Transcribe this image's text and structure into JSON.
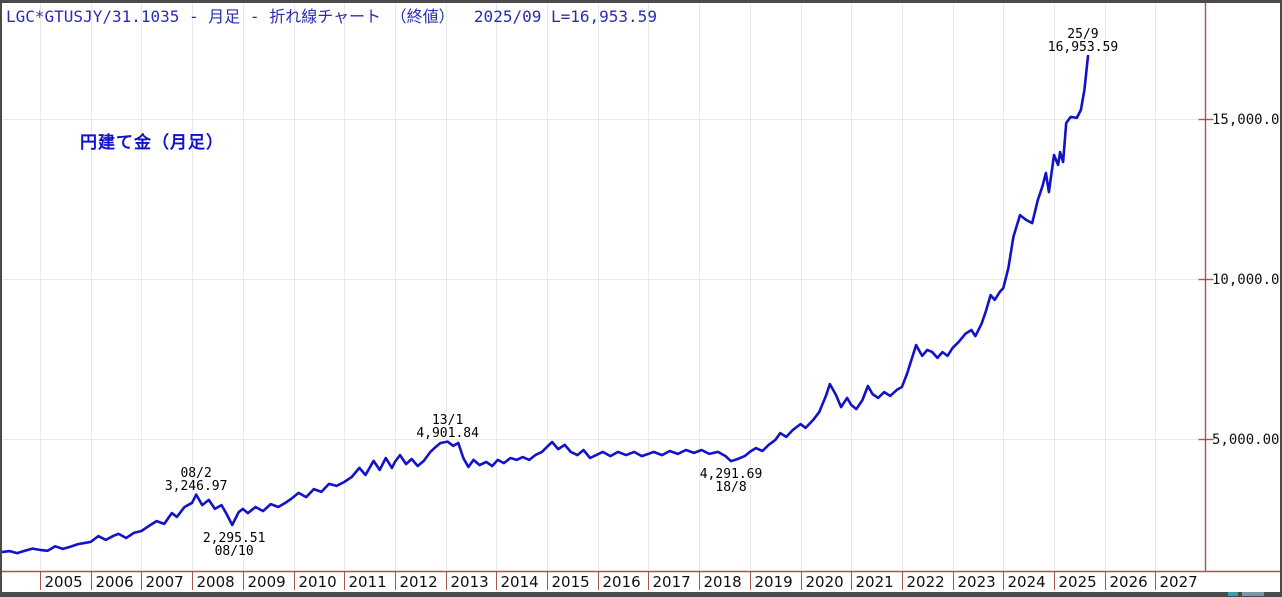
{
  "header": {
    "text": "LGC*GTUSJY/31.1035 - 月足 - 折れ線チャート （終値）  2025/09 L=16,953.59"
  },
  "chart_title": "円建て金（月足）",
  "colors": {
    "line": "#1212c8",
    "axis_red": "#a65454",
    "grid": "#e9e9e9",
    "header_text": "#2b2bb4",
    "title_text": "#1111cc",
    "label_text": "#101010",
    "frame": "#4a4a4a",
    "corner_accent_1": "#35a0a8",
    "corner_accent_2": "#8093a8"
  },
  "y_axis": {
    "tick_labels": [
      "15,000.00",
      "10,000.00",
      "5,000.00"
    ],
    "tick_values": [
      15000,
      10000,
      5000
    ]
  },
  "x_axis": {
    "year_labels": [
      "2005",
      "2006",
      "2007",
      "2008",
      "2009",
      "2010",
      "2011",
      "2012",
      "2013",
      "2014",
      "2015",
      "2016",
      "2017",
      "2018",
      "2019",
      "2020",
      "2021",
      "2022",
      "2023",
      "2024",
      "2025",
      "2026",
      "2027"
    ]
  },
  "annotations": [
    {
      "lines": [
        "25/9",
        "16,953.59"
      ],
      "year": 2025.67,
      "value": 16953.59,
      "position": "above",
      "dx": -5
    },
    {
      "lines": [
        "08/2",
        "3,246.97"
      ],
      "year": 2008.08,
      "value": 3246.97,
      "position": "above",
      "dx": 0
    },
    {
      "lines": [
        "2,295.51",
        "08/10"
      ],
      "year": 2008.79,
      "value": 2295.51,
      "position": "below",
      "dx": 2
    },
    {
      "lines": [
        "13/1",
        "4,901.84"
      ],
      "year": 2013.04,
      "value": 4901.84,
      "position": "above",
      "dx": 0
    },
    {
      "lines": [
        "4,291.69",
        "18/8"
      ],
      "year": 2018.63,
      "value": 4291.69,
      "position": "below",
      "dx": 0
    }
  ],
  "chart_data": {
    "type": "line",
    "title": "円建て金（月足）",
    "legend": false,
    "grid": true,
    "xlim": [
      2004.25,
      2028.0
    ],
    "ylim": [
      850,
      18600
    ],
    "y_ticks": [
      5000,
      10000,
      15000
    ],
    "latest": {
      "date": "2025/09",
      "close": 16953.59
    },
    "key_points": [
      {
        "date": "08/2",
        "value": 3246.97
      },
      {
        "date": "08/10",
        "value": 2295.51
      },
      {
        "date": "13/1",
        "value": 4901.84
      },
      {
        "date": "18/8",
        "value": 4291.69
      },
      {
        "date": "25/9",
        "value": 16953.59
      }
    ],
    "series": [
      {
        "name": "円建て金（月足・終値）",
        "points": [
          [
            2004.25,
            1450
          ],
          [
            2004.4,
            1480
          ],
          [
            2004.55,
            1420
          ],
          [
            2004.7,
            1490
          ],
          [
            2004.85,
            1560
          ],
          [
            2005.0,
            1520
          ],
          [
            2005.15,
            1490
          ],
          [
            2005.3,
            1630
          ],
          [
            2005.45,
            1550
          ],
          [
            2005.6,
            1620
          ],
          [
            2005.75,
            1700
          ],
          [
            2005.9,
            1740
          ],
          [
            2006.0,
            1770
          ],
          [
            2006.15,
            1950
          ],
          [
            2006.3,
            1830
          ],
          [
            2006.45,
            1960
          ],
          [
            2006.55,
            2020
          ],
          [
            2006.7,
            1890
          ],
          [
            2006.85,
            2050
          ],
          [
            2007.0,
            2110
          ],
          [
            2007.15,
            2270
          ],
          [
            2007.3,
            2420
          ],
          [
            2007.45,
            2330
          ],
          [
            2007.6,
            2670
          ],
          [
            2007.7,
            2550
          ],
          [
            2007.85,
            2860
          ],
          [
            2008.0,
            2990
          ],
          [
            2008.08,
            3246.97
          ],
          [
            2008.2,
            2920
          ],
          [
            2008.33,
            3080
          ],
          [
            2008.45,
            2800
          ],
          [
            2008.58,
            2920
          ],
          [
            2008.68,
            2640
          ],
          [
            2008.79,
            2295.51
          ],
          [
            2008.92,
            2700
          ],
          [
            2009.0,
            2800
          ],
          [
            2009.1,
            2670
          ],
          [
            2009.25,
            2860
          ],
          [
            2009.4,
            2730
          ],
          [
            2009.55,
            2950
          ],
          [
            2009.7,
            2860
          ],
          [
            2009.85,
            3000
          ],
          [
            2009.95,
            3110
          ],
          [
            2010.1,
            3300
          ],
          [
            2010.25,
            3170
          ],
          [
            2010.4,
            3420
          ],
          [
            2010.55,
            3330
          ],
          [
            2010.7,
            3580
          ],
          [
            2010.85,
            3520
          ],
          [
            2011.0,
            3640
          ],
          [
            2011.15,
            3800
          ],
          [
            2011.3,
            4080
          ],
          [
            2011.42,
            3860
          ],
          [
            2011.58,
            4300
          ],
          [
            2011.7,
            4020
          ],
          [
            2011.82,
            4390
          ],
          [
            2011.94,
            4080
          ],
          [
            2012.0,
            4270
          ],
          [
            2012.1,
            4480
          ],
          [
            2012.22,
            4200
          ],
          [
            2012.33,
            4360
          ],
          [
            2012.45,
            4140
          ],
          [
            2012.57,
            4300
          ],
          [
            2012.7,
            4580
          ],
          [
            2012.8,
            4730
          ],
          [
            2012.9,
            4860
          ],
          [
            2013.04,
            4901.84
          ],
          [
            2013.15,
            4770
          ],
          [
            2013.25,
            4860
          ],
          [
            2013.35,
            4390
          ],
          [
            2013.45,
            4110
          ],
          [
            2013.55,
            4330
          ],
          [
            2013.67,
            4170
          ],
          [
            2013.8,
            4270
          ],
          [
            2013.92,
            4140
          ],
          [
            2014.03,
            4330
          ],
          [
            2014.15,
            4230
          ],
          [
            2014.28,
            4390
          ],
          [
            2014.4,
            4330
          ],
          [
            2014.52,
            4420
          ],
          [
            2014.65,
            4330
          ],
          [
            2014.77,
            4480
          ],
          [
            2014.9,
            4580
          ],
          [
            2015.02,
            4770
          ],
          [
            2015.1,
            4890
          ],
          [
            2015.22,
            4670
          ],
          [
            2015.35,
            4800
          ],
          [
            2015.47,
            4580
          ],
          [
            2015.6,
            4480
          ],
          [
            2015.72,
            4640
          ],
          [
            2015.85,
            4390
          ],
          [
            2015.97,
            4480
          ],
          [
            2016.1,
            4580
          ],
          [
            2016.25,
            4450
          ],
          [
            2016.4,
            4580
          ],
          [
            2016.56,
            4480
          ],
          [
            2016.72,
            4580
          ],
          [
            2016.87,
            4450
          ],
          [
            2017.0,
            4520
          ],
          [
            2017.1,
            4580
          ],
          [
            2017.27,
            4480
          ],
          [
            2017.42,
            4610
          ],
          [
            2017.58,
            4520
          ],
          [
            2017.74,
            4640
          ],
          [
            2017.9,
            4550
          ],
          [
            2018.05,
            4640
          ],
          [
            2018.2,
            4520
          ],
          [
            2018.37,
            4580
          ],
          [
            2018.52,
            4450
          ],
          [
            2018.63,
            4291.69
          ],
          [
            2018.76,
            4360
          ],
          [
            2018.9,
            4450
          ],
          [
            2019.0,
            4580
          ],
          [
            2019.12,
            4700
          ],
          [
            2019.25,
            4610
          ],
          [
            2019.37,
            4800
          ],
          [
            2019.5,
            4950
          ],
          [
            2019.6,
            5170
          ],
          [
            2019.72,
            5050
          ],
          [
            2019.85,
            5270
          ],
          [
            2020.0,
            5450
          ],
          [
            2020.1,
            5330
          ],
          [
            2020.25,
            5580
          ],
          [
            2020.37,
            5830
          ],
          [
            2020.5,
            6330
          ],
          [
            2020.58,
            6700
          ],
          [
            2020.7,
            6360
          ],
          [
            2020.8,
            5980
          ],
          [
            2020.92,
            6270
          ],
          [
            2021.0,
            6050
          ],
          [
            2021.1,
            5920
          ],
          [
            2021.22,
            6200
          ],
          [
            2021.33,
            6640
          ],
          [
            2021.42,
            6390
          ],
          [
            2021.53,
            6270
          ],
          [
            2021.65,
            6450
          ],
          [
            2021.77,
            6330
          ],
          [
            2021.9,
            6520
          ],
          [
            2022.0,
            6610
          ],
          [
            2022.1,
            7020
          ],
          [
            2022.28,
            7920
          ],
          [
            2022.4,
            7580
          ],
          [
            2022.5,
            7770
          ],
          [
            2022.6,
            7700
          ],
          [
            2022.7,
            7520
          ],
          [
            2022.8,
            7700
          ],
          [
            2022.9,
            7580
          ],
          [
            2023.0,
            7830
          ],
          [
            2023.12,
            8020
          ],
          [
            2023.25,
            8270
          ],
          [
            2023.37,
            8390
          ],
          [
            2023.45,
            8200
          ],
          [
            2023.57,
            8580
          ],
          [
            2023.65,
            8950
          ],
          [
            2023.75,
            9480
          ],
          [
            2023.83,
            9330
          ],
          [
            2023.93,
            9580
          ],
          [
            2024.0,
            9700
          ],
          [
            2024.1,
            10330
          ],
          [
            2024.2,
            11300
          ],
          [
            2024.33,
            11980
          ],
          [
            2024.45,
            11830
          ],
          [
            2024.57,
            11730
          ],
          [
            2024.68,
            12450
          ],
          [
            2024.78,
            12920
          ],
          [
            2024.84,
            13300
          ],
          [
            2024.9,
            12700
          ],
          [
            2025.0,
            13860
          ],
          [
            2025.08,
            13550
          ],
          [
            2025.12,
            13950
          ],
          [
            2025.18,
            13640
          ],
          [
            2025.24,
            14860
          ],
          [
            2025.33,
            15050
          ],
          [
            2025.45,
            15020
          ],
          [
            2025.53,
            15270
          ],
          [
            2025.6,
            15890
          ],
          [
            2025.67,
            16953.59
          ]
        ]
      }
    ]
  }
}
